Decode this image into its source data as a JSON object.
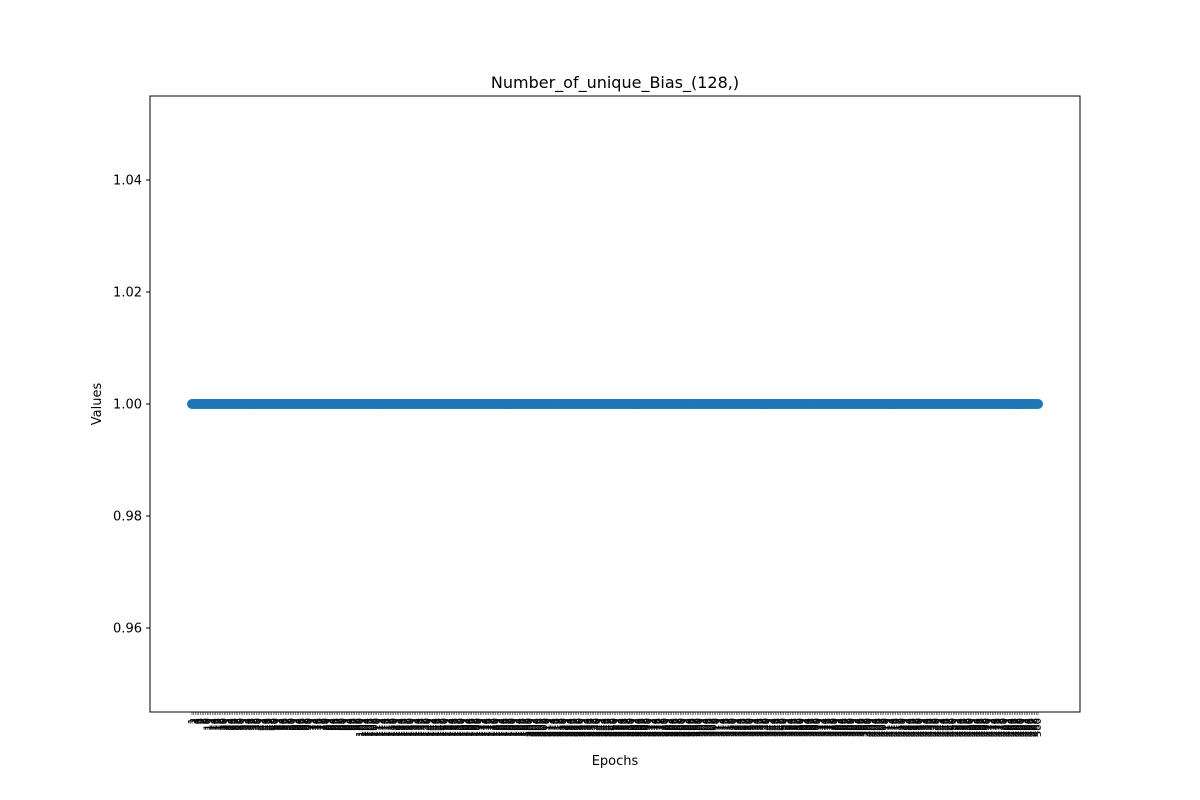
{
  "chart_data": {
    "type": "scatter",
    "title": "Number_of_unique_Bias_(128,)",
    "xlabel": "Epochs",
    "ylabel": "Values",
    "x_first": 1,
    "x_last": 500,
    "x_tick_labels": [
      "1",
      "2",
      "3",
      "4",
      "5",
      "6",
      "7",
      "8",
      "9",
      "10",
      "11",
      "12",
      "13",
      "14",
      "15",
      "16",
      "17",
      "18",
      "19",
      "20",
      "21",
      "22",
      "23",
      "24",
      "25",
      "26",
      "27",
      "28",
      "29",
      "30",
      "31",
      "32",
      "33",
      "34",
      "35",
      "36",
      "37",
      "38",
      "39",
      "40",
      "41",
      "42",
      "43",
      "44",
      "45",
      "46",
      "47",
      "48",
      "49",
      "50",
      "51",
      "52",
      "53",
      "54",
      "55",
      "56",
      "57",
      "58",
      "59",
      "60",
      "61",
      "62",
      "63",
      "64",
      "65",
      "66",
      "67",
      "68",
      "69",
      "70",
      "71",
      "72",
      "73",
      "74",
      "75",
      "76",
      "77",
      "78",
      "79",
      "80",
      "81",
      "82",
      "83",
      "84",
      "85",
      "86",
      "87",
      "88",
      "89",
      "90",
      "91",
      "92",
      "93",
      "94",
      "95",
      "96",
      "97",
      "98",
      "99",
      "100",
      "101",
      "102",
      "103",
      "104",
      "105",
      "106",
      "107",
      "108",
      "109",
      "110",
      "111",
      "112",
      "113",
      "114",
      "115",
      "116",
      "117",
      "118",
      "119",
      "120",
      "121",
      "122",
      "123",
      "124",
      "125",
      "126",
      "127",
      "128",
      "129",
      "130",
      "131",
      "132",
      "133",
      "134",
      "135",
      "136",
      "137",
      "138",
      "139",
      "140",
      "141",
      "142",
      "143",
      "144",
      "145",
      "146",
      "147",
      "148",
      "149",
      "150",
      "151",
      "152",
      "153",
      "154",
      "155",
      "156",
      "157",
      "158",
      "159",
      "160",
      "161",
      "162",
      "163",
      "164",
      "165",
      "166",
      "167",
      "168",
      "169",
      "170",
      "171",
      "172",
      "173",
      "174",
      "175",
      "176",
      "177",
      "178",
      "179",
      "180",
      "181",
      "182",
      "183",
      "184",
      "185",
      "186",
      "187",
      "188",
      "189",
      "190",
      "191",
      "192",
      "193",
      "194",
      "195",
      "196",
      "197",
      "198",
      "199",
      "200",
      "201",
      "202",
      "203",
      "204",
      "205",
      "206",
      "207",
      "208",
      "209",
      "210",
      "211",
      "212",
      "213",
      "214",
      "215",
      "216",
      "217",
      "218",
      "219",
      "220",
      "221",
      "222",
      "223",
      "224",
      "225",
      "226",
      "227",
      "228",
      "229",
      "230",
      "231",
      "232",
      "233",
      "234",
      "235",
      "236",
      "237",
      "238",
      "239",
      "240",
      "241",
      "242",
      "243",
      "244",
      "245",
      "246",
      "247",
      "248",
      "249",
      "250",
      "251",
      "252",
      "253",
      "254",
      "255",
      "256",
      "257",
      "258",
      "259",
      "260",
      "261",
      "262",
      "263",
      "264",
      "265",
      "266",
      "267",
      "268",
      "269",
      "270",
      "271",
      "272",
      "273",
      "274",
      "275",
      "276",
      "277",
      "278",
      "279",
      "280",
      "281",
      "282",
      "283",
      "284",
      "285",
      "286",
      "287",
      "288",
      "289",
      "290",
      "291",
      "292",
      "293",
      "294",
      "295",
      "296",
      "297",
      "298",
      "299",
      "300",
      "301",
      "302",
      "303",
      "304",
      "305",
      "306",
      "307",
      "308",
      "309",
      "310",
      "311",
      "312",
      "313",
      "314",
      "315",
      "316",
      "317",
      "318",
      "319",
      "320",
      "321",
      "322",
      "323",
      "324",
      "325",
      "326",
      "327",
      "328",
      "329",
      "330",
      "331",
      "332",
      "333",
      "334",
      "335",
      "336",
      "337",
      "338",
      "339",
      "340",
      "341",
      "342",
      "343",
      "344",
      "345",
      "346",
      "347",
      "348",
      "349",
      "350",
      "351",
      "352",
      "353",
      "354",
      "355",
      "356",
      "357",
      "358",
      "359",
      "360",
      "361",
      "362",
      "363",
      "364",
      "365",
      "366",
      "367",
      "368",
      "369",
      "370",
      "371",
      "372",
      "373",
      "374",
      "375",
      "376",
      "377",
      "378",
      "379",
      "380",
      "381",
      "382",
      "383",
      "384",
      "385",
      "386",
      "387",
      "388",
      "389",
      "390",
      "391",
      "392",
      "393",
      "394",
      "395",
      "396",
      "397",
      "398",
      "399",
      "400",
      "401",
      "402",
      "403",
      "404",
      "405",
      "406",
      "407",
      "408",
      "409",
      "410",
      "411",
      "412",
      "413",
      "414",
      "415",
      "416",
      "417",
      "418",
      "419",
      "420",
      "421",
      "422",
      "423",
      "424",
      "425",
      "426",
      "427",
      "428",
      "429",
      "430",
      "431",
      "432",
      "433",
      "434",
      "435",
      "436",
      "437",
      "438",
      "439",
      "440",
      "441",
      "442",
      "443",
      "444",
      "445",
      "446",
      "447",
      "448",
      "449",
      "450",
      "451",
      "452",
      "453",
      "454",
      "455",
      "456",
      "457",
      "458",
      "459",
      "460",
      "461",
      "462",
      "463",
      "464",
      "465",
      "466",
      "467",
      "468",
      "469",
      "470",
      "471",
      "472",
      "473",
      "474",
      "475",
      "476",
      "477",
      "478",
      "479",
      "480",
      "481",
      "482",
      "483",
      "484",
      "485",
      "486",
      "487",
      "488",
      "489",
      "490",
      "491",
      "492",
      "493",
      "494",
      "495",
      "496",
      "497",
      "498",
      "499",
      "500"
    ],
    "y_value": 1.0,
    "ylim": [
      0.945,
      1.055
    ],
    "y_ticks": [
      0.96,
      0.98,
      1.0,
      1.02,
      1.04
    ],
    "y_tick_labels": [
      "0.96",
      "0.98",
      "1.00",
      "1.02",
      "1.04"
    ],
    "grid": false,
    "legend": "none",
    "marker_color": "#1f77b4"
  }
}
